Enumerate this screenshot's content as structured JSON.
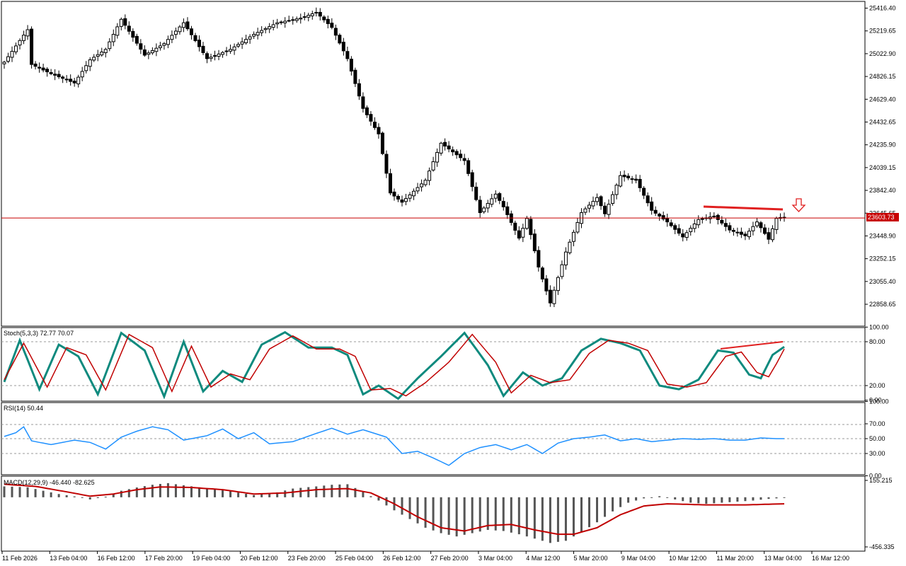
{
  "price_panel": {
    "current_price": "23603.73",
    "y_ticks": [
      "25416.40",
      "25219.65",
      "25022.90",
      "24826.15",
      "24629.40",
      "24432.65",
      "24235.90",
      "24039.15",
      "23842.40",
      "23645.65",
      "23448.90",
      "23252.15",
      "23055.40",
      "22858.65"
    ],
    "y_min": 22700,
    "y_max": 25450,
    "current_value": 23603.73,
    "line_color": "#c80000",
    "signal_arrow_color": "#e02020"
  },
  "stoch_panel": {
    "label": "Stoch(5,3,3) 72.77 70.07",
    "y_ticks": [
      "100.00",
      "80.00",
      "20.00",
      "0.00"
    ],
    "main_color": "#0f8a7e",
    "signal_color": "#c00000"
  },
  "rsi_panel": {
    "label": "RSI(14) 50.44",
    "y_ticks": [
      "100.00",
      "70.00",
      "50.00",
      "30.00",
      "0.00"
    ],
    "color": "#1e90ff"
  },
  "macd_panel": {
    "label": "MACD(12,29,9) -46.440 -82.625",
    "y_ticks": [
      "155.215",
      "-456.335"
    ],
    "hist_color": "#555555",
    "signal_color": "#c00000"
  },
  "x_axis": {
    "labels": [
      "11 Feb 2026",
      "13 Feb 04:00",
      "16 Feb 12:00",
      "17 Feb 20:00",
      "19 Feb 04:00",
      "20 Feb 12:00",
      "23 Feb 20:00",
      "25 Feb 04:00",
      "26 Feb 12:00",
      "27 Feb 20:00",
      "3 Mar 04:00",
      "4 Mar 12:00",
      "5 Mar 20:00",
      "9 Mar 04:00",
      "10 Mar 12:00",
      "11 Mar 20:00",
      "13 Mar 04:00",
      "16 Mar 12:00"
    ]
  },
  "chart_data": {
    "type": "candlestick",
    "series_anchors": [
      [
        0,
        24950
      ],
      [
        6,
        25230
      ],
      [
        7,
        24930
      ],
      [
        12,
        24850
      ],
      [
        18,
        24770
      ],
      [
        22,
        24970
      ],
      [
        26,
        25060
      ],
      [
        30,
        25320
      ],
      [
        36,
        25010
      ],
      [
        41,
        25110
      ],
      [
        46,
        25290
      ],
      [
        52,
        24980
      ],
      [
        58,
        25060
      ],
      [
        64,
        25190
      ],
      [
        70,
        25290
      ],
      [
        76,
        25330
      ],
      [
        80,
        25380
      ],
      [
        84,
        25250
      ],
      [
        88,
        24980
      ],
      [
        92,
        24550
      ],
      [
        96,
        24330
      ],
      [
        99,
        23820
      ],
      [
        102,
        23740
      ],
      [
        108,
        23930
      ],
      [
        112,
        24250
      ],
      [
        118,
        24100
      ],
      [
        122,
        23650
      ],
      [
        126,
        23810
      ],
      [
        128,
        23700
      ],
      [
        132,
        23430
      ],
      [
        134,
        23600
      ],
      [
        137,
        23180
      ],
      [
        140,
        22870
      ],
      [
        144,
        23310
      ],
      [
        148,
        23650
      ],
      [
        152,
        23780
      ],
      [
        154,
        23640
      ],
      [
        158,
        23970
      ],
      [
        162,
        23930
      ],
      [
        166,
        23670
      ],
      [
        170,
        23570
      ],
      [
        174,
        23440
      ],
      [
        178,
        23590
      ],
      [
        182,
        23620
      ],
      [
        186,
        23500
      ],
      [
        190,
        23450
      ],
      [
        193,
        23570
      ],
      [
        196,
        23420
      ],
      [
        198,
        23600
      ],
      [
        200,
        23610
      ]
    ],
    "stoch_k_anchors": [
      [
        0,
        25
      ],
      [
        4,
        82
      ],
      [
        9,
        15
      ],
      [
        14,
        76
      ],
      [
        19,
        60
      ],
      [
        24,
        8
      ],
      [
        30,
        92
      ],
      [
        36,
        68
      ],
      [
        41,
        5
      ],
      [
        46,
        80
      ],
      [
        51,
        12
      ],
      [
        56,
        40
      ],
      [
        61,
        25
      ],
      [
        66,
        76
      ],
      [
        72,
        93
      ],
      [
        78,
        72
      ],
      [
        84,
        72
      ],
      [
        88,
        62
      ],
      [
        92,
        8
      ],
      [
        96,
        20
      ],
      [
        101,
        2
      ],
      [
        106,
        30
      ],
      [
        112,
        60
      ],
      [
        118,
        92
      ],
      [
        124,
        48
      ],
      [
        128,
        6
      ],
      [
        133,
        38
      ],
      [
        138,
        20
      ],
      [
        143,
        30
      ],
      [
        148,
        68
      ],
      [
        153,
        84
      ],
      [
        158,
        78
      ],
      [
        163,
        68
      ],
      [
        168,
        20
      ],
      [
        173,
        15
      ],
      [
        178,
        28
      ],
      [
        183,
        68
      ],
      [
        187,
        65
      ],
      [
        191,
        35
      ],
      [
        194,
        30
      ],
      [
        197,
        62
      ],
      [
        200,
        73
      ]
    ],
    "stoch_d_anchors": [
      [
        0,
        28
      ],
      [
        5,
        78
      ],
      [
        11,
        18
      ],
      [
        16,
        72
      ],
      [
        21,
        62
      ],
      [
        26,
        14
      ],
      [
        32,
        90
      ],
      [
        38,
        72
      ],
      [
        43,
        12
      ],
      [
        48,
        74
      ],
      [
        53,
        18
      ],
      [
        58,
        36
      ],
      [
        63,
        28
      ],
      [
        68,
        70
      ],
      [
        74,
        88
      ],
      [
        80,
        70
      ],
      [
        86,
        70
      ],
      [
        90,
        60
      ],
      [
        94,
        14
      ],
      [
        99,
        16
      ],
      [
        103,
        6
      ],
      [
        108,
        24
      ],
      [
        114,
        52
      ],
      [
        120,
        90
      ],
      [
        126,
        52
      ],
      [
        130,
        10
      ],
      [
        135,
        34
      ],
      [
        140,
        24
      ],
      [
        145,
        28
      ],
      [
        150,
        64
      ],
      [
        155,
        82
      ],
      [
        160,
        78
      ],
      [
        165,
        68
      ],
      [
        170,
        22
      ],
      [
        175,
        18
      ],
      [
        180,
        24
      ],
      [
        185,
        60
      ],
      [
        189,
        66
      ],
      [
        193,
        38
      ],
      [
        196,
        32
      ],
      [
        198,
        50
      ],
      [
        200,
        70
      ]
    ],
    "rsi_anchors": [
      [
        0,
        53
      ],
      [
        3,
        58
      ],
      [
        5,
        66
      ],
      [
        7,
        47
      ],
      [
        12,
        42
      ],
      [
        18,
        48
      ],
      [
        22,
        45
      ],
      [
        26,
        36
      ],
      [
        30,
        52
      ],
      [
        34,
        60
      ],
      [
        38,
        66
      ],
      [
        42,
        62
      ],
      [
        46,
        48
      ],
      [
        52,
        54
      ],
      [
        56,
        63
      ],
      [
        60,
        50
      ],
      [
        64,
        58
      ],
      [
        68,
        43
      ],
      [
        74,
        46
      ],
      [
        80,
        57
      ],
      [
        84,
        64
      ],
      [
        88,
        56
      ],
      [
        92,
        62
      ],
      [
        98,
        52
      ],
      [
        102,
        30
      ],
      [
        106,
        33
      ],
      [
        110,
        24
      ],
      [
        114,
        14
      ],
      [
        118,
        30
      ],
      [
        122,
        38
      ],
      [
        126,
        42
      ],
      [
        130,
        35
      ],
      [
        134,
        42
      ],
      [
        138,
        30
      ],
      [
        142,
        44
      ],
      [
        146,
        50
      ],
      [
        150,
        52
      ],
      [
        154,
        55
      ],
      [
        158,
        47
      ],
      [
        162,
        50
      ],
      [
        166,
        46
      ],
      [
        170,
        48
      ],
      [
        174,
        50
      ],
      [
        178,
        49
      ],
      [
        182,
        50
      ],
      [
        186,
        48
      ],
      [
        190,
        48
      ],
      [
        194,
        51
      ],
      [
        198,
        50
      ],
      [
        200,
        50
      ]
    ],
    "macd_hist_anchors": [
      [
        0,
        100
      ],
      [
        6,
        92
      ],
      [
        10,
        60
      ],
      [
        14,
        30
      ],
      [
        18,
        8
      ],
      [
        22,
        -20
      ],
      [
        26,
        5
      ],
      [
        30,
        60
      ],
      [
        34,
        90
      ],
      [
        38,
        115
      ],
      [
        42,
        130
      ],
      [
        46,
        110
      ],
      [
        52,
        82
      ],
      [
        58,
        55
      ],
      [
        64,
        20
      ],
      [
        70,
        45
      ],
      [
        74,
        80
      ],
      [
        80,
        100
      ],
      [
        84,
        115
      ],
      [
        88,
        120
      ],
      [
        92,
        50
      ],
      [
        96,
        -30
      ],
      [
        100,
        -120
      ],
      [
        104,
        -200
      ],
      [
        108,
        -280
      ],
      [
        112,
        -330
      ],
      [
        116,
        -360
      ],
      [
        120,
        -330
      ],
      [
        124,
        -300
      ],
      [
        128,
        -310
      ],
      [
        132,
        -340
      ],
      [
        136,
        -380
      ],
      [
        140,
        -420
      ],
      [
        144,
        -400
      ],
      [
        148,
        -320
      ],
      [
        152,
        -230
      ],
      [
        156,
        -130
      ],
      [
        160,
        -50
      ],
      [
        164,
        -10
      ],
      [
        168,
        10
      ],
      [
        172,
        -20
      ],
      [
        176,
        -50
      ],
      [
        180,
        -60
      ],
      [
        184,
        -50
      ],
      [
        188,
        -40
      ],
      [
        192,
        -30
      ],
      [
        196,
        -15
      ],
      [
        200,
        -5
      ]
    ],
    "macd_signal_anchors": [
      [
        0,
        120
      ],
      [
        8,
        100
      ],
      [
        16,
        50
      ],
      [
        22,
        10
      ],
      [
        28,
        30
      ],
      [
        34,
        70
      ],
      [
        40,
        95
      ],
      [
        48,
        90
      ],
      [
        56,
        70
      ],
      [
        64,
        30
      ],
      [
        72,
        40
      ],
      [
        80,
        70
      ],
      [
        88,
        80
      ],
      [
        94,
        40
      ],
      [
        100,
        -60
      ],
      [
        106,
        -180
      ],
      [
        112,
        -280
      ],
      [
        118,
        -310
      ],
      [
        124,
        -260
      ],
      [
        130,
        -250
      ],
      [
        136,
        -300
      ],
      [
        142,
        -340
      ],
      [
        146,
        -340
      ],
      [
        152,
        -280
      ],
      [
        158,
        -160
      ],
      [
        164,
        -80
      ],
      [
        170,
        -60
      ],
      [
        180,
        -70
      ],
      [
        190,
        -70
      ],
      [
        200,
        -60
      ]
    ]
  }
}
